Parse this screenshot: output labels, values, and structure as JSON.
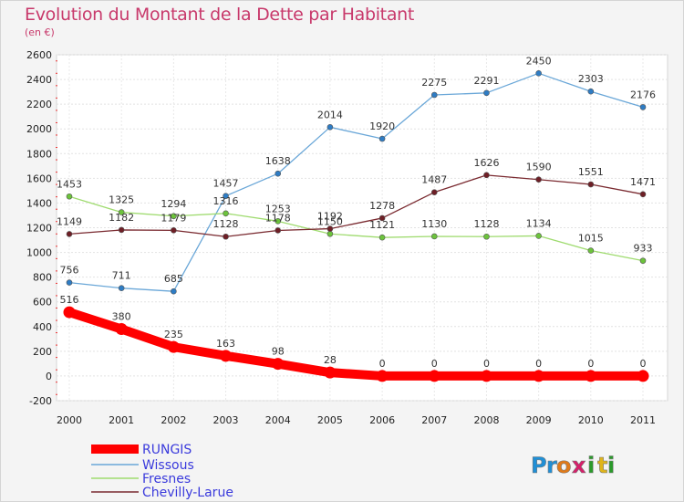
{
  "chart_data": {
    "type": "line",
    "title": "Evolution du Montant de la Dette par Habitant",
    "subtitle": "(en €)",
    "xlabel": "",
    "ylabel": "",
    "ylim": [
      -200,
      2600
    ],
    "yticks": [
      -200,
      0,
      200,
      400,
      600,
      800,
      1000,
      1200,
      1400,
      1600,
      1800,
      2000,
      2200,
      2400,
      2600
    ],
    "grid": true,
    "categories": [
      "2000",
      "2001",
      "2002",
      "2003",
      "2004",
      "2005",
      "2006",
      "2007",
      "2008",
      "2009",
      "2010",
      "2011"
    ],
    "series": [
      {
        "name": "Wissous",
        "color": "#6aa7d8",
        "dot": "#2e7cc4",
        "values": [
          756,
          711,
          685,
          1457,
          1638,
          2014,
          1920,
          2275,
          2291,
          2450,
          2303,
          2176
        ]
      },
      {
        "name": "Fresnes",
        "color": "#9fdb6f",
        "dot": "#6cc33c",
        "values": [
          1453,
          1325,
          1294,
          1316,
          1253,
          1150,
          1121,
          1130,
          1128,
          1134,
          1015,
          933
        ]
      },
      {
        "name": "Chevilly-Larue",
        "color": "#7a2a30",
        "dot": "#6e1f26",
        "values": [
          1149,
          1182,
          1179,
          1128,
          1178,
          1192,
          1278,
          1487,
          1626,
          1590,
          1551,
          1471
        ]
      },
      {
        "name": "RUNGIS",
        "color": "#ff0000",
        "dot": "#ff0000",
        "values": [
          516,
          380,
          235,
          163,
          98,
          28,
          0,
          0,
          0,
          0,
          0,
          0
        ]
      }
    ],
    "legend": [
      "RUNGIS",
      "Wissous",
      "Fresnes",
      "Chevilly-Larue"
    ],
    "legend_position": "bottom-left"
  },
  "branding": {
    "logo_text": "Proxiti",
    "logo_letters": [
      "P",
      "r",
      "o",
      "x",
      "i",
      "t",
      "i"
    ],
    "logo_colors": [
      "#1f8fd6",
      "#1f8fd6",
      "#e07a1a",
      "#d61f6a",
      "#2a9a2a",
      "#e0b51a",
      "#2a9a2a"
    ]
  }
}
